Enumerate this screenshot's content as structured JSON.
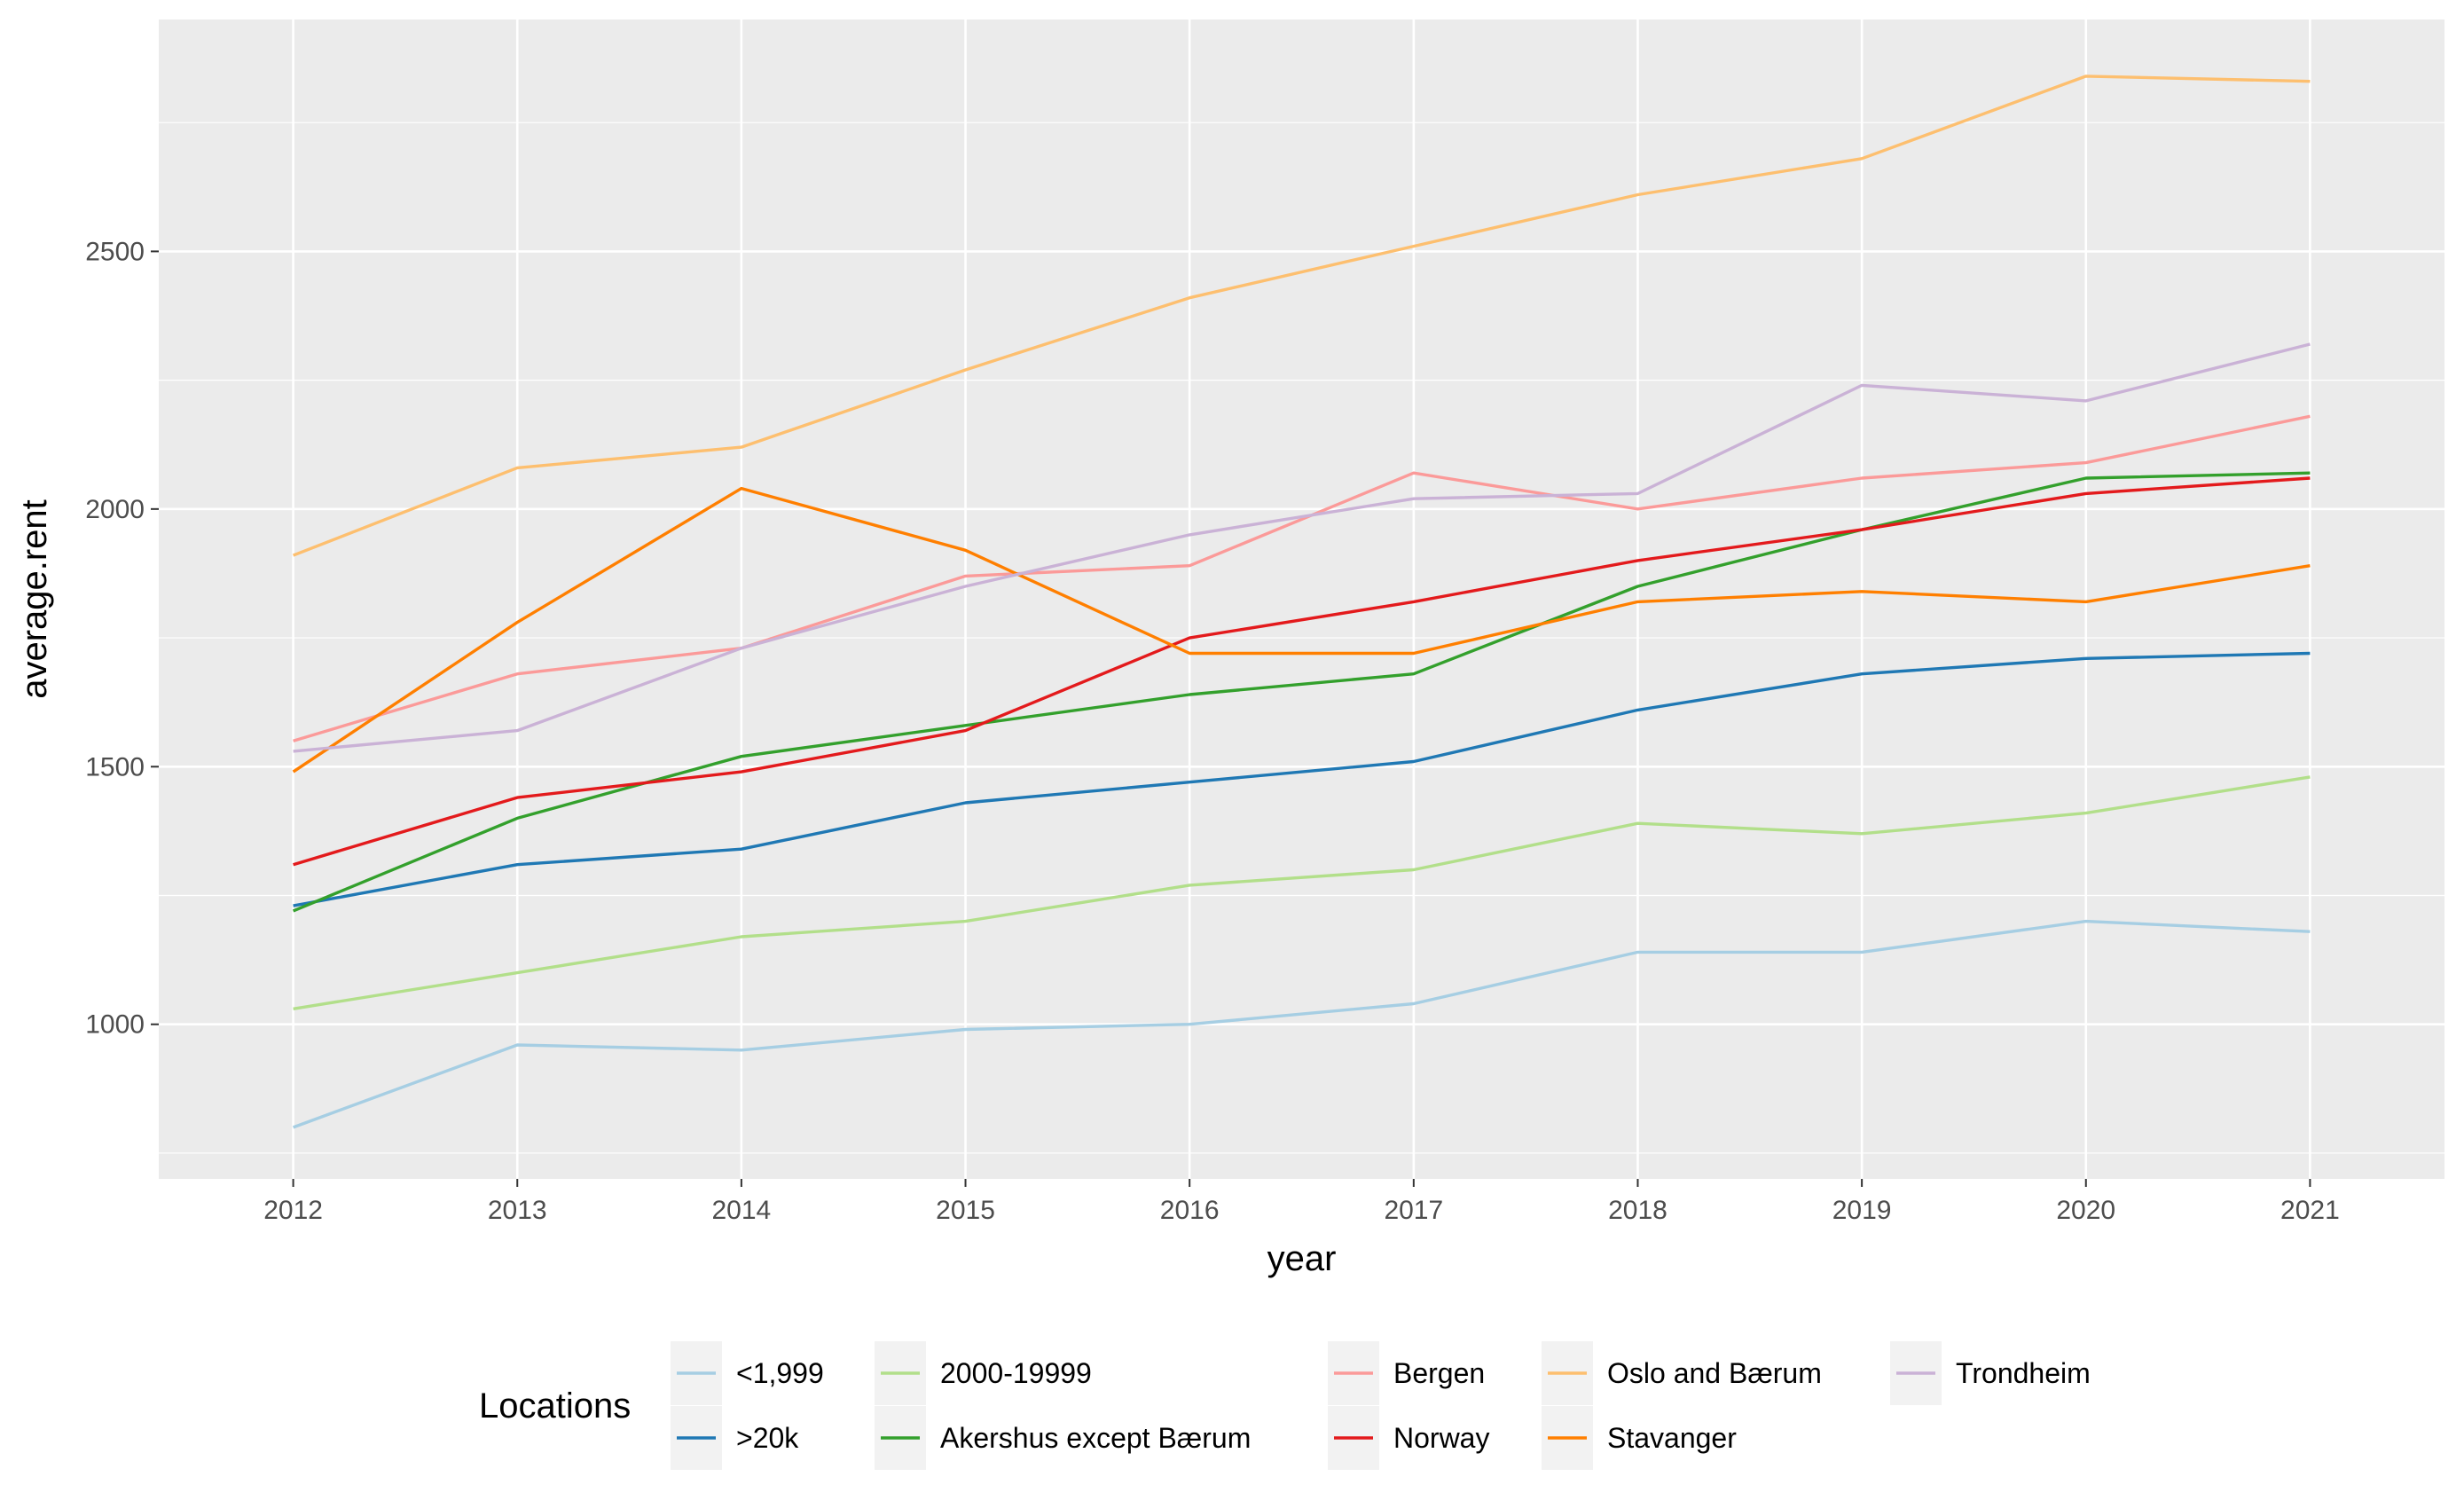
{
  "chart_data": {
    "type": "line",
    "title": "",
    "xlabel": "year",
    "ylabel": "average.rent",
    "x": [
      2012,
      2013,
      2014,
      2015,
      2016,
      2017,
      2018,
      2019,
      2020,
      2021
    ],
    "x_ticks": [
      "2012",
      "2013",
      "2014",
      "2015",
      "2016",
      "2017",
      "2018",
      "2019",
      "2020",
      "2021"
    ],
    "xlim": [
      2011.4,
      2021.6
    ],
    "y_ticks": [
      1000,
      1500,
      2000,
      2500
    ],
    "y_tick_labels": [
      "1000",
      "1500",
      "2000",
      "2500"
    ],
    "ylim": [
      700,
      2950
    ],
    "grid": true,
    "legend": {
      "title": "Locations",
      "placement": "bottom"
    },
    "series": [
      {
        "name": "<1,999",
        "color": "#a6cee3",
        "values": [
          800,
          960,
          950,
          990,
          1000,
          1040,
          1140,
          1140,
          1200,
          1180
        ]
      },
      {
        "name": ">20k",
        "color": "#1f78b4",
        "values": [
          1230,
          1310,
          1340,
          1430,
          1470,
          1510,
          1610,
          1680,
          1710,
          1720
        ]
      },
      {
        "name": "2000-19999",
        "color": "#b2df8a",
        "values": [
          1030,
          1100,
          1170,
          1200,
          1270,
          1300,
          1390,
          1370,
          1410,
          1480
        ]
      },
      {
        "name": "Akershus except Bærum",
        "color": "#33a02c",
        "values": [
          1220,
          1400,
          1520,
          1580,
          1640,
          1680,
          1850,
          1960,
          2060,
          2070
        ]
      },
      {
        "name": "Bergen",
        "color": "#fb9a99",
        "values": [
          1550,
          1680,
          1730,
          1870,
          1890,
          2070,
          2000,
          2060,
          2090,
          2180
        ]
      },
      {
        "name": "Norway",
        "color": "#e31a1c",
        "values": [
          1310,
          1440,
          1490,
          1570,
          1750,
          1820,
          1900,
          1960,
          2030,
          2060
        ]
      },
      {
        "name": "Oslo and Bærum",
        "color": "#fdbf6f",
        "values": [
          1910,
          2080,
          2120,
          2270,
          2410,
          2510,
          2610,
          2680,
          2840,
          2830
        ]
      },
      {
        "name": "Stavanger",
        "color": "#ff7f00",
        "values": [
          1490,
          1780,
          2040,
          1920,
          1720,
          1720,
          1820,
          1840,
          1820,
          1890
        ]
      },
      {
        "name": "Trondheim",
        "color": "#cab2d6",
        "values": [
          1530,
          1570,
          1730,
          1850,
          1950,
          2020,
          2030,
          2240,
          2210,
          2320
        ]
      }
    ]
  }
}
